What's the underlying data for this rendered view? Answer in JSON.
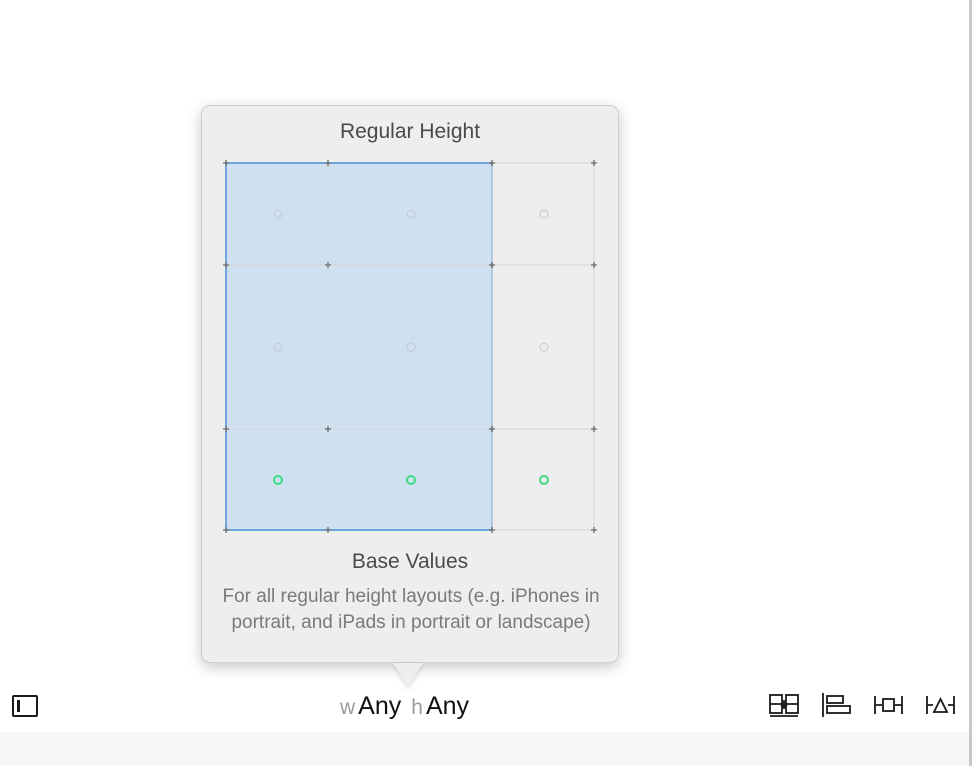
{
  "popover": {
    "title": "Regular Height",
    "subtitle": "Base Values",
    "description": "For all regular height layouts (e.g. iPhones in portrait, and iPads in portrait or landscape)",
    "selection_color": "#cde0f1",
    "selection_border": "#4a90d9",
    "dot_active_color": "#3ddc84",
    "dot_inactive_color": "#c9c9c9"
  },
  "bottom_bar": {
    "sidebar_toggle_icon": "sidebar-toggle-icon",
    "width_prefix": "w",
    "width_value": "Any",
    "height_prefix": "h",
    "height_value": "Any",
    "tools": [
      "embed-in-stack-icon",
      "align-icon",
      "pin-icon",
      "resolve-issues-icon"
    ]
  }
}
